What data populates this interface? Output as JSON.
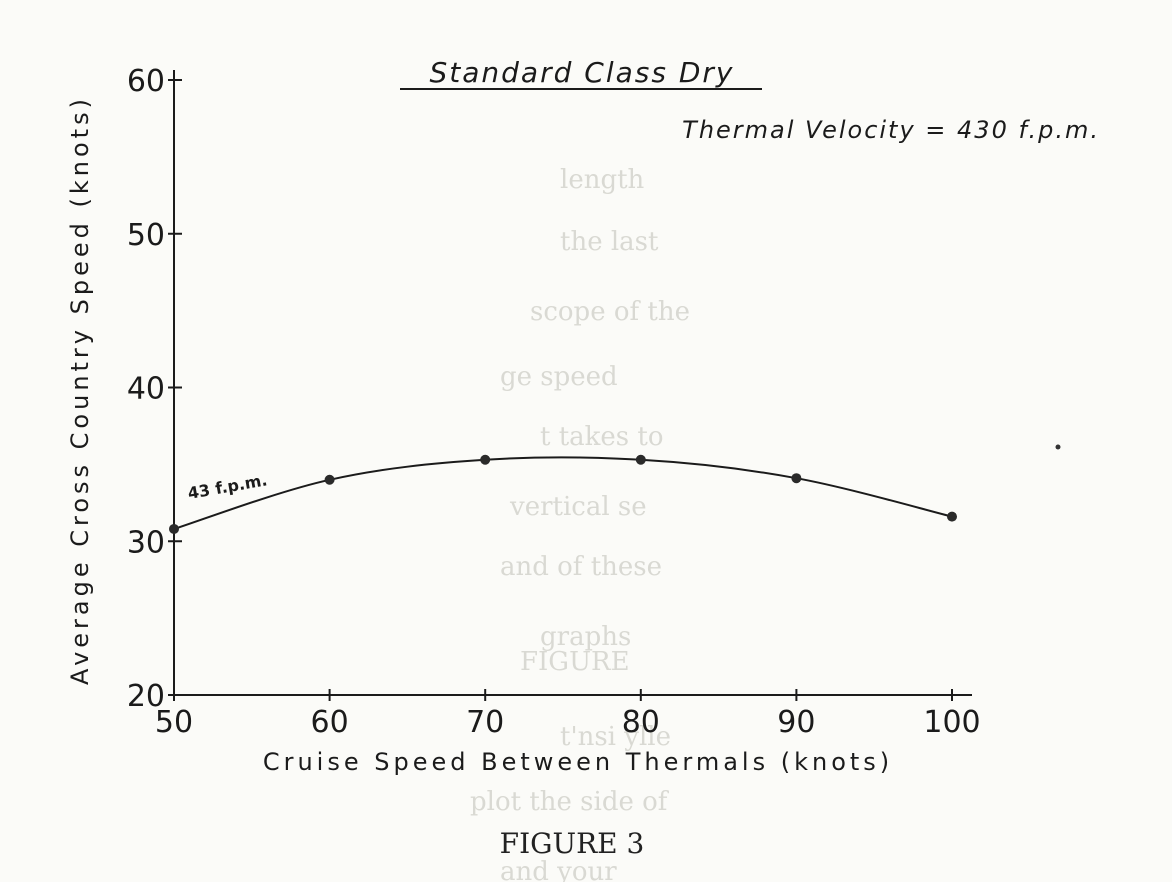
{
  "chart_data": {
    "type": "line",
    "title": "Standard Class Dry",
    "subtitle": "Thermal Velocity = 430 f.p.m.",
    "xlabel": "Cruise Speed Between Thermals (knots)",
    "ylabel": "Average Cross Country Speed (knots)",
    "x_ticks": [
      "50",
      "60",
      "70",
      "80",
      "90",
      "100"
    ],
    "y_ticks": [
      "20",
      "30",
      "40",
      "50",
      "60"
    ],
    "xlim": [
      50,
      100
    ],
    "ylim": [
      20,
      60
    ],
    "grid": false,
    "series": [
      {
        "name": "",
        "x": [
          50,
          60,
          70,
          80,
          90,
          100
        ],
        "y": [
          30.8,
          34.0,
          35.3,
          35.3,
          34.1,
          31.6
        ]
      }
    ],
    "annotations": [
      {
        "text": "43 f.p.m.",
        "x": 53.5,
        "y": 33.2
      }
    ],
    "caption": "FIGURE 3"
  }
}
